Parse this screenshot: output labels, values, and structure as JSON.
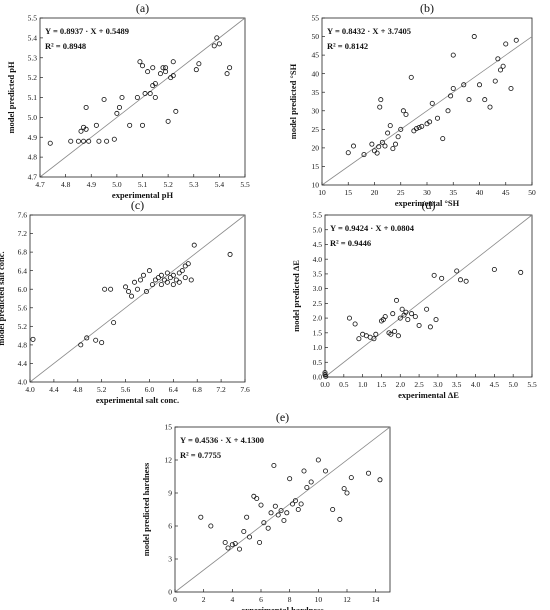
{
  "chart_data": [
    {
      "id": "a",
      "type": "scatter",
      "panel_label": "(a)",
      "xlabel": "experimental pH",
      "ylabel": "model predicted pH",
      "xlim": [
        4.7,
        5.5
      ],
      "ylim": [
        4.7,
        5.5
      ],
      "xticks": [
        4.7,
        4.8,
        4.9,
        5.0,
        5.1,
        5.2,
        5.3,
        5.4,
        5.5
      ],
      "yticks": [
        4.7,
        4.8,
        4.9,
        5.0,
        5.1,
        5.2,
        5.3,
        5.4,
        5.5
      ],
      "tick_decimals": 1,
      "equation": "Y = 0.8937 · X + 0.5489",
      "r2": "R² = 0.8948",
      "reference_line": "y = x",
      "grid": false,
      "points": [
        [
          4.74,
          4.87
        ],
        [
          4.82,
          4.88
        ],
        [
          4.85,
          4.88
        ],
        [
          4.86,
          4.93
        ],
        [
          4.87,
          4.88
        ],
        [
          4.87,
          4.95
        ],
        [
          4.88,
          4.94
        ],
        [
          4.89,
          4.88
        ],
        [
          4.88,
          5.05
        ],
        [
          4.92,
          4.96
        ],
        [
          4.93,
          4.88
        ],
        [
          4.95,
          5.09
        ],
        [
          4.96,
          4.88
        ],
        [
          4.99,
          4.89
        ],
        [
          5.0,
          5.02
        ],
        [
          5.01,
          5.05
        ],
        [
          5.02,
          5.1
        ],
        [
          5.05,
          4.96
        ],
        [
          5.08,
          5.1
        ],
        [
          5.09,
          5.28
        ],
        [
          5.1,
          5.26
        ],
        [
          5.1,
          4.96
        ],
        [
          5.11,
          5.12
        ],
        [
          5.12,
          5.23
        ],
        [
          5.13,
          5.12
        ],
        [
          5.14,
          5.16
        ],
        [
          5.14,
          5.25
        ],
        [
          5.15,
          5.17
        ],
        [
          5.15,
          5.1
        ],
        [
          5.17,
          5.22
        ],
        [
          5.18,
          5.25
        ],
        [
          5.19,
          5.23
        ],
        [
          5.19,
          5.25
        ],
        [
          5.2,
          4.98
        ],
        [
          5.21,
          5.2
        ],
        [
          5.22,
          5.21
        ],
        [
          5.22,
          5.28
        ],
        [
          5.23,
          5.03
        ],
        [
          5.31,
          5.24
        ],
        [
          5.32,
          5.27
        ],
        [
          5.38,
          5.36
        ],
        [
          5.39,
          5.4
        ],
        [
          5.4,
          5.37
        ],
        [
          5.43,
          5.22
        ],
        [
          5.44,
          5.25
        ]
      ]
    },
    {
      "id": "b",
      "type": "scatter",
      "panel_label": "(b)",
      "xlabel": "experimental °SH",
      "ylabel": "model predicted °SH",
      "xlim": [
        10,
        50
      ],
      "ylim": [
        10,
        55
      ],
      "xticks": [
        10,
        15,
        20,
        25,
        30,
        35,
        40,
        45,
        50
      ],
      "yticks": [
        10,
        15,
        20,
        25,
        30,
        35,
        40,
        45,
        50,
        55
      ],
      "tick_decimals": 0,
      "equation": "Y = 0.8432 · X + 3.7405",
      "r2": "R² = 0.8142",
      "reference_line": "y = x",
      "grid": false,
      "points": [
        [
          15,
          18.7
        ],
        [
          16,
          20.5
        ],
        [
          18,
          18.2
        ],
        [
          19.5,
          21
        ],
        [
          20,
          19.2
        ],
        [
          20.5,
          18.6
        ],
        [
          20.8,
          20.3
        ],
        [
          21,
          31
        ],
        [
          21.2,
          33
        ],
        [
          21.5,
          21.5
        ],
        [
          22,
          20.5
        ],
        [
          22.5,
          24
        ],
        [
          23,
          26
        ],
        [
          23.5,
          19.8
        ],
        [
          24,
          21
        ],
        [
          24.5,
          23
        ],
        [
          25,
          25
        ],
        [
          25.5,
          30
        ],
        [
          26,
          29
        ],
        [
          27,
          39
        ],
        [
          27.5,
          24.6
        ],
        [
          28,
          25.2
        ],
        [
          28.5,
          25.5
        ],
        [
          29,
          25.8
        ],
        [
          30,
          26.5
        ],
        [
          30.5,
          27
        ],
        [
          31,
          32
        ],
        [
          32,
          28
        ],
        [
          33,
          22.5
        ],
        [
          34,
          30
        ],
        [
          34.5,
          34
        ],
        [
          35,
          36
        ],
        [
          35,
          45
        ],
        [
          37,
          37
        ],
        [
          38,
          33
        ],
        [
          39,
          50
        ],
        [
          40,
          37
        ],
        [
          41,
          33
        ],
        [
          42,
          31
        ],
        [
          43,
          38
        ],
        [
          43.5,
          44
        ],
        [
          44,
          41
        ],
        [
          44.5,
          42
        ],
        [
          45,
          48
        ],
        [
          46,
          36
        ],
        [
          47,
          49
        ]
      ]
    },
    {
      "id": "c",
      "type": "scatter",
      "panel_label": "(c)",
      "xlabel": "experimental salt conc.",
      "ylabel": "model predicted salt conc.",
      "xlim": [
        4.0,
        7.6
      ],
      "ylim": [
        4.0,
        7.6
      ],
      "xticks": [
        4.0,
        4.4,
        4.8,
        5.2,
        5.6,
        6.0,
        6.4,
        6.8,
        7.2,
        7.6
      ],
      "yticks": [
        4.0,
        4.4,
        4.8,
        5.2,
        5.6,
        6.0,
        6.4,
        6.8,
        7.2,
        7.6
      ],
      "tick_decimals": 1,
      "equation": "",
      "r2": "",
      "reference_line": "y = x",
      "grid": false,
      "points": [
        [
          4.05,
          4.92
        ],
        [
          4.85,
          4.8
        ],
        [
          4.95,
          4.95
        ],
        [
          5.1,
          4.9
        ],
        [
          5.2,
          4.85
        ],
        [
          5.25,
          6.0
        ],
        [
          5.35,
          6.0
        ],
        [
          5.4,
          5.28
        ],
        [
          5.6,
          6.05
        ],
        [
          5.65,
          5.95
        ],
        [
          5.7,
          5.85
        ],
        [
          5.75,
          6.15
        ],
        [
          5.8,
          6.0
        ],
        [
          5.85,
          6.2
        ],
        [
          5.9,
          6.3
        ],
        [
          5.95,
          5.95
        ],
        [
          6.0,
          6.4
        ],
        [
          6.05,
          6.1
        ],
        [
          6.1,
          6.2
        ],
        [
          6.15,
          6.25
        ],
        [
          6.2,
          6.1
        ],
        [
          6.2,
          6.3
        ],
        [
          6.25,
          6.2
        ],
        [
          6.3,
          6.35
        ],
        [
          6.3,
          6.15
        ],
        [
          6.35,
          6.25
        ],
        [
          6.4,
          6.1
        ],
        [
          6.4,
          6.3
        ],
        [
          6.45,
          6.2
        ],
        [
          6.5,
          6.35
        ],
        [
          6.5,
          6.15
        ],
        [
          6.55,
          6.4
        ],
        [
          6.6,
          6.5
        ],
        [
          6.6,
          6.25
        ],
        [
          6.65,
          6.55
        ],
        [
          6.7,
          6.2
        ],
        [
          6.75,
          6.95
        ],
        [
          7.35,
          6.75
        ]
      ]
    },
    {
      "id": "d",
      "type": "scatter",
      "panel_label": "(d)",
      "xlabel": "experimental ΔE",
      "ylabel": "model predicted ΔE",
      "xlim": [
        0.0,
        5.5
      ],
      "ylim": [
        0.0,
        5.5
      ],
      "xticks": [
        0.0,
        0.5,
        1.0,
        1.5,
        2.0,
        2.5,
        3.0,
        3.5,
        4.0,
        4.5,
        5.0,
        5.5
      ],
      "yticks": [
        0.0,
        0.5,
        1.0,
        1.5,
        2.0,
        2.5,
        3.0,
        3.5,
        4.0,
        4.5,
        5.0,
        5.5
      ],
      "tick_decimals": 1,
      "equation": "Y = 0.9424 · X + 0.0804",
      "r2": "R² = 0.9446",
      "reference_line": "y = x",
      "grid": false,
      "points": [
        [
          0.0,
          0.08
        ],
        [
          0.0,
          0.15
        ],
        [
          0.02,
          0.02
        ],
        [
          0.65,
          2.0
        ],
        [
          0.8,
          1.8
        ],
        [
          0.9,
          1.3
        ],
        [
          1.0,
          1.45
        ],
        [
          1.1,
          1.4
        ],
        [
          1.2,
          1.35
        ],
        [
          1.3,
          1.3
        ],
        [
          1.35,
          1.45
        ],
        [
          1.5,
          1.9
        ],
        [
          1.55,
          1.95
        ],
        [
          1.6,
          2.05
        ],
        [
          1.7,
          1.5
        ],
        [
          1.75,
          1.45
        ],
        [
          1.8,
          2.15
        ],
        [
          1.85,
          1.55
        ],
        [
          1.9,
          2.6
        ],
        [
          1.95,
          1.4
        ],
        [
          2.0,
          2.0
        ],
        [
          2.05,
          2.3
        ],
        [
          2.1,
          2.1
        ],
        [
          2.15,
          2.2
        ],
        [
          2.2,
          1.95
        ],
        [
          2.3,
          2.15
        ],
        [
          2.4,
          2.05
        ],
        [
          2.5,
          1.75
        ],
        [
          2.7,
          2.3
        ],
        [
          2.8,
          1.7
        ],
        [
          2.9,
          3.45
        ],
        [
          2.95,
          1.95
        ],
        [
          3.1,
          3.35
        ],
        [
          3.5,
          3.6
        ],
        [
          3.6,
          3.3
        ],
        [
          3.75,
          3.25
        ],
        [
          4.5,
          3.65
        ],
        [
          5.2,
          3.55
        ]
      ]
    },
    {
      "id": "e",
      "type": "scatter",
      "panel_label": "(e)",
      "xlabel": "experimental hardness",
      "ylabel": "model predicted hardness",
      "xlim": [
        0,
        15
      ],
      "ylim": [
        0,
        15
      ],
      "xticks": [
        0,
        2,
        4,
        6,
        8,
        10,
        12,
        14
      ],
      "yticks": [
        0,
        3,
        6,
        9,
        12,
        15
      ],
      "tick_decimals": 0,
      "equation": "Y = 0.4536 · X + 4.1300",
      "r2": "R² = 0.7755",
      "reference_line": "y = x",
      "grid": false,
      "points": [
        [
          1.8,
          6.8
        ],
        [
          2.5,
          6.0
        ],
        [
          3.5,
          4.5
        ],
        [
          3.7,
          4.0
        ],
        [
          4.0,
          4.3
        ],
        [
          4.2,
          4.4
        ],
        [
          4.5,
          3.9
        ],
        [
          4.8,
          5.5
        ],
        [
          5.0,
          6.8
        ],
        [
          5.2,
          5.0
        ],
        [
          5.5,
          8.7
        ],
        [
          5.7,
          8.5
        ],
        [
          5.9,
          4.5
        ],
        [
          6.0,
          7.9
        ],
        [
          6.2,
          6.3
        ],
        [
          6.5,
          5.8
        ],
        [
          6.7,
          7.2
        ],
        [
          6.9,
          11.5
        ],
        [
          7.0,
          7.8
        ],
        [
          7.2,
          7.0
        ],
        [
          7.4,
          7.4
        ],
        [
          7.6,
          6.5
        ],
        [
          7.8,
          7.2
        ],
        [
          8.0,
          10.3
        ],
        [
          8.2,
          8.0
        ],
        [
          8.4,
          8.3
        ],
        [
          8.6,
          7.5
        ],
        [
          8.8,
          8.0
        ],
        [
          9.0,
          11.0
        ],
        [
          9.2,
          9.5
        ],
        [
          9.5,
          10.0
        ],
        [
          10.0,
          12.0
        ],
        [
          10.5,
          11.0
        ],
        [
          11.0,
          7.5
        ],
        [
          11.5,
          6.6
        ],
        [
          11.8,
          9.4
        ],
        [
          12.0,
          9.0
        ],
        [
          12.3,
          10.4
        ],
        [
          13.5,
          10.8
        ],
        [
          14.3,
          10.2
        ]
      ]
    }
  ]
}
